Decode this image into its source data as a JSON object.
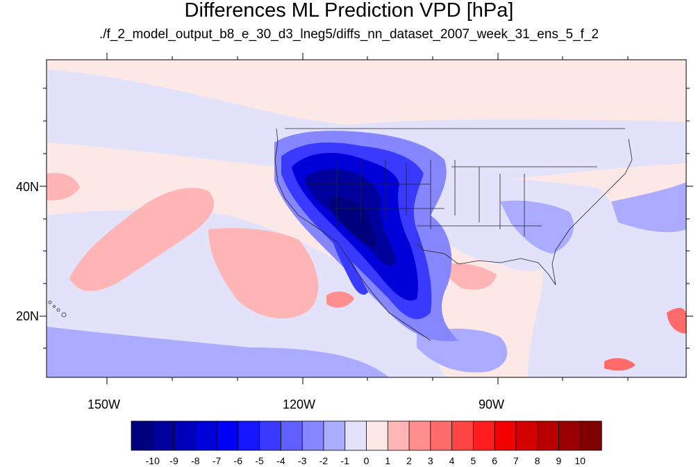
{
  "title": "Differences ML Prediction VPD [hPa]",
  "subtitle": "./f_2_model_output_b8_e_30_d3_lneg5/diffs_nn_dataset_2007_week_31_ens_5_f_2",
  "lon_labels": [
    "150W",
    "120W",
    "90W"
  ],
  "lat_labels": [
    "40N",
    "20N"
  ],
  "colorbar": {
    "labels": [
      "-10",
      "-9",
      "-8",
      "-7",
      "-6",
      "-5",
      "-4",
      "-3",
      "-2",
      "-1",
      "0",
      "1",
      "2",
      "3",
      "4",
      "5",
      "6",
      "7",
      "8",
      "9",
      "10"
    ],
    "colors": [
      "#00007f",
      "#00009d",
      "#0000ba",
      "#0000d8",
      "#0000f6",
      "#1515ff",
      "#3a3aff",
      "#6060ff",
      "#8686ff",
      "#ababff",
      "#e2e2fb",
      "#fde8e8",
      "#ffb5b5",
      "#ff8f8f",
      "#ff6a6a",
      "#ff4444",
      "#ff1e1e",
      "#f20000",
      "#d40000",
      "#b70000",
      "#990000",
      "#7f0000"
    ]
  },
  "map": {
    "lon_range": [
      -161,
      -62
    ],
    "lat_range": [
      10.5,
      59
    ],
    "background_color": "#fde8e8"
  }
}
